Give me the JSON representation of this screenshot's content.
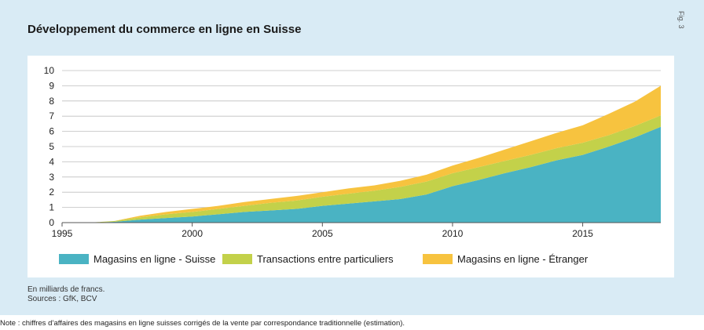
{
  "figure_label": "Fig. 3",
  "unit_note": "En milliards de francs.",
  "sources": "Sources : GfK, BCV",
  "footnote": "Note : chiffres d’affaires des magasins en ligne suisses corrigés de la vente par correspondance traditionnelle (estimation).",
  "colors": {
    "swiss": "#4ab3c3",
    "p2p": "#c3d14a",
    "foreign": "#f7c33f",
    "panel": "#d9ebf5"
  },
  "chart_data": {
    "type": "area",
    "stacked": true,
    "title": "Développement du commerce en ligne en Suisse",
    "xlabel": "",
    "ylabel": "",
    "xlim": [
      1995,
      2018
    ],
    "ylim": [
      0,
      10
    ],
    "x_ticks": [
      "1995",
      "2000",
      "2005",
      "2010",
      "2015"
    ],
    "y_ticks": [
      "0",
      "1",
      "2",
      "3",
      "4",
      "5",
      "6",
      "7",
      "8",
      "9",
      "10"
    ],
    "grid": true,
    "legend_position": "bottom",
    "x": [
      1995,
      1996,
      1997,
      1998,
      1999,
      2000,
      2001,
      2002,
      2003,
      2004,
      2005,
      2006,
      2007,
      2008,
      2009,
      2010,
      2011,
      2012,
      2013,
      2014,
      2015,
      2016,
      2017,
      2018
    ],
    "series": [
      {
        "name": "Magasins en ligne - Suisse",
        "values": [
          0,
          0,
          0.05,
          0.2,
          0.3,
          0.4,
          0.55,
          0.7,
          0.8,
          0.9,
          1.1,
          1.25,
          1.4,
          1.55,
          1.85,
          2.4,
          2.8,
          3.25,
          3.65,
          4.1,
          4.45,
          5.0,
          5.6,
          6.3
        ]
      },
      {
        "name": "Transactions entre particuliers",
        "values": [
          0,
          0,
          0.05,
          0.15,
          0.25,
          0.3,
          0.35,
          0.4,
          0.5,
          0.55,
          0.6,
          0.65,
          0.7,
          0.8,
          0.85,
          0.85,
          0.85,
          0.8,
          0.8,
          0.8,
          0.8,
          0.75,
          0.75,
          0.75
        ]
      },
      {
        "name": "Magasins en ligne - Étranger",
        "values": [
          0,
          0,
          0,
          0.1,
          0.15,
          0.2,
          0.2,
          0.25,
          0.25,
          0.3,
          0.3,
          0.35,
          0.35,
          0.4,
          0.45,
          0.5,
          0.6,
          0.75,
          0.9,
          1.0,
          1.15,
          1.4,
          1.6,
          1.95
        ]
      }
    ]
  }
}
